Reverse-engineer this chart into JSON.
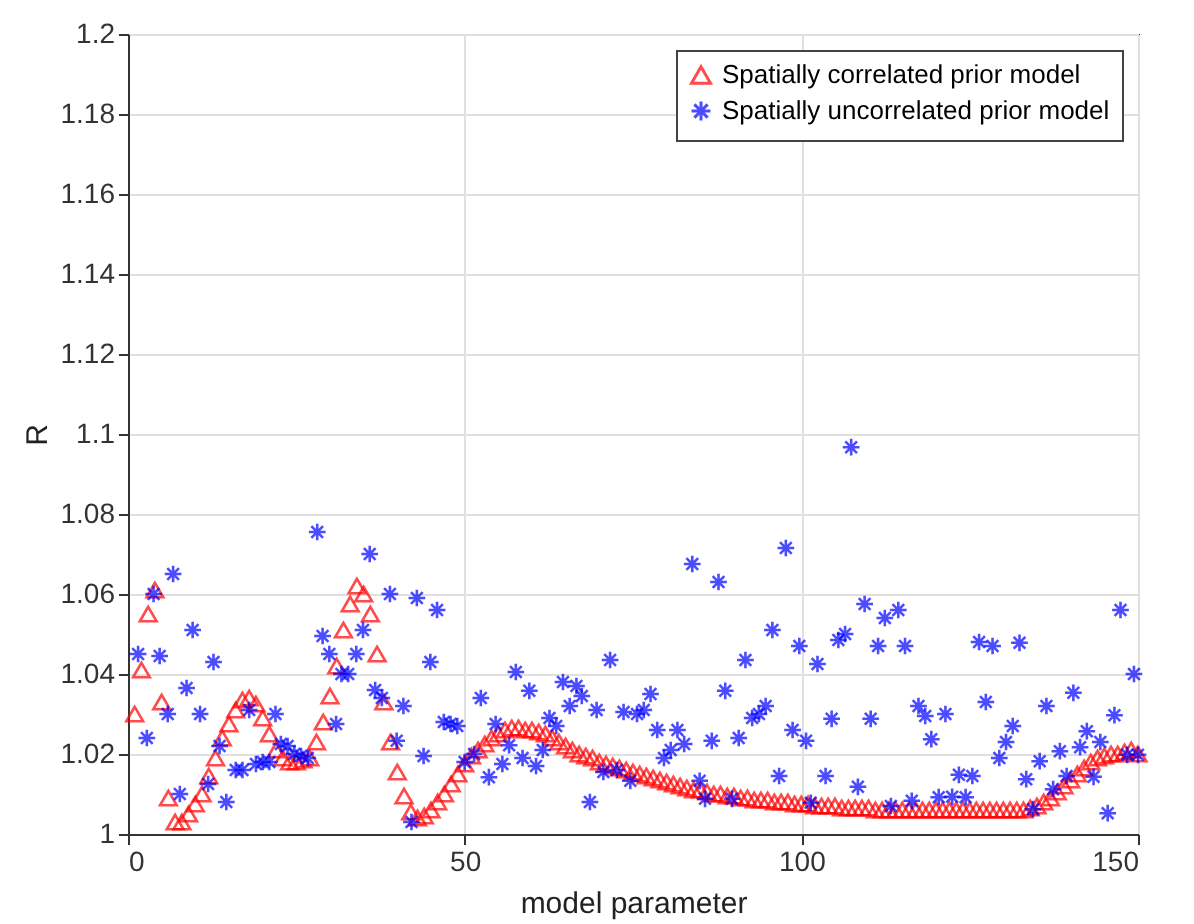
{
  "chart_data": {
    "type": "scatter",
    "xlabel": "model parameter",
    "ylabel": "R",
    "xlim": [
      0,
      150
    ],
    "xticks": [
      0,
      50,
      100,
      150
    ],
    "ylim": [
      1,
      1.2
    ],
    "yticks": [
      1,
      1.02,
      1.04,
      1.06,
      1.08,
      1.1,
      1.12,
      1.14,
      1.16,
      1.18,
      1.2
    ],
    "grid": true,
    "legend": "top right",
    "series": [
      {
        "name": "Spatially correlated prior model",
        "color": "#ff0000",
        "marker": "triangle",
        "x": [
          1,
          2,
          3,
          4,
          5,
          6,
          7,
          8,
          9,
          10,
          11,
          12,
          13,
          14,
          15,
          16,
          17,
          18,
          19,
          20,
          21,
          22,
          23,
          24,
          25,
          26,
          27,
          28,
          29,
          30,
          31,
          32,
          33,
          34,
          35,
          36,
          37,
          38,
          39,
          40,
          41,
          42,
          43,
          44,
          45,
          46,
          47,
          48,
          49,
          50,
          51,
          52,
          53,
          54,
          55,
          56,
          57,
          58,
          59,
          60,
          61,
          62,
          63,
          64,
          65,
          66,
          67,
          68,
          69,
          70,
          71,
          72,
          73,
          74,
          75,
          76,
          77,
          78,
          79,
          80,
          81,
          82,
          83,
          84,
          85,
          86,
          87,
          88,
          89,
          90,
          91,
          92,
          93,
          94,
          95,
          96,
          97,
          98,
          99,
          100,
          101,
          102,
          103,
          104,
          105,
          106,
          107,
          108,
          109,
          110,
          111,
          112,
          113,
          114,
          115,
          116,
          117,
          118,
          119,
          120,
          121,
          122,
          123,
          124,
          125,
          126,
          127,
          128,
          129,
          130,
          131,
          132,
          133,
          134,
          135,
          136,
          137,
          138,
          139,
          140,
          141,
          142,
          143,
          144,
          145,
          146,
          147,
          148,
          149,
          150
        ],
        "values": [
          1.03,
          1.041,
          1.055,
          1.061,
          1.033,
          1.009,
          1.003,
          1.003,
          1.005,
          1.0075,
          1.01,
          1.0145,
          1.019,
          1.024,
          1.0275,
          1.031,
          1.0335,
          1.034,
          1.0325,
          1.029,
          1.025,
          1.021,
          1.019,
          1.018,
          1.018,
          1.0185,
          1.019,
          1.023,
          1.028,
          1.0345,
          1.042,
          1.051,
          1.0575,
          1.062,
          1.06,
          1.055,
          1.045,
          1.033,
          1.023,
          1.0155,
          1.0095,
          1.0055,
          1.004,
          1.0045,
          1.006,
          1.008,
          1.01,
          1.0125,
          1.015,
          1.0175,
          1.0195,
          1.021,
          1.0225,
          1.024,
          1.025,
          1.026,
          1.0265,
          1.0265,
          1.026,
          1.026,
          1.0255,
          1.025,
          1.024,
          1.023,
          1.022,
          1.021,
          1.02,
          1.0195,
          1.019,
          1.018,
          1.0175,
          1.017,
          1.0165,
          1.016,
          1.0155,
          1.015,
          1.0145,
          1.014,
          1.0135,
          1.013,
          1.0125,
          1.012,
          1.0115,
          1.011,
          1.011,
          1.0105,
          1.01,
          1.01,
          1.0095,
          1.0095,
          1.009,
          1.009,
          1.0085,
          1.0085,
          1.0085,
          1.008,
          1.008,
          1.008,
          1.0075,
          1.0075,
          1.0075,
          1.007,
          1.007,
          1.007,
          1.007,
          1.0065,
          1.0065,
          1.0065,
          1.0065,
          1.0065,
          1.006,
          1.006,
          1.006,
          1.006,
          1.006,
          1.006,
          1.006,
          1.006,
          1.006,
          1.006,
          1.006,
          1.006,
          1.006,
          1.006,
          1.006,
          1.006,
          1.006,
          1.006,
          1.006,
          1.006,
          1.006,
          1.006,
          1.006,
          1.0065,
          1.007,
          1.008,
          1.009,
          1.0105,
          1.012,
          1.0135,
          1.015,
          1.0165,
          1.018,
          1.019,
          1.0195,
          1.02,
          1.02,
          1.0205,
          1.021,
          1.02
        ]
      },
      {
        "name": "Spatially uncorrelated prior model",
        "color": "#0000ff",
        "marker": "cross",
        "x": [
          1.5,
          2.8,
          3.8,
          4.7,
          5.9,
          6.7,
          7.7,
          8.7,
          9.6,
          10.7,
          11.9,
          12.7,
          13.6,
          14.6,
          16,
          17,
          18,
          19,
          20,
          21,
          21.9,
          22.7,
          23.7,
          24.7,
          25.7,
          26.7,
          28.1,
          28.9,
          29.9,
          30.9,
          31.7,
          32.7,
          33.9,
          34.9,
          35.9,
          36.7,
          37.7,
          38.9,
          39.9,
          40.9,
          42.1,
          42.9,
          43.9,
          44.9,
          45.9,
          46.9,
          47.9,
          48.9,
          50,
          51.4,
          52.4,
          53.6,
          54.6,
          55.6,
          56.6,
          57.6,
          58.6,
          59.6,
          60.6,
          61.6,
          62.6,
          63.6,
          64.6,
          65.6,
          66.6,
          67.4,
          68.6,
          69.6,
          70.6,
          71.6,
          72.6,
          73.6,
          74.6,
          75.6,
          76.6,
          77.6,
          78.6,
          79.6,
          80.6,
          81.6,
          82.6,
          83.8,
          84.9,
          85.7,
          86.7,
          87.7,
          88.7,
          89.7,
          90.7,
          91.7,
          92.7,
          93.7,
          94.7,
          95.7,
          96.7,
          97.7,
          98.7,
          99.7,
          100.7,
          101.4,
          102.4,
          103.6,
          104.5,
          105.5,
          106.5,
          107.4,
          108.4,
          109.4,
          110.3,
          111.4,
          112.4,
          113.3,
          114.4,
          115.4,
          116.4,
          117.4,
          118.4,
          119.3,
          120.4,
          121.4,
          122.4,
          123.4,
          124.4,
          125.4,
          126.4,
          127.4,
          128.4,
          129.4,
          130.4,
          131.4,
          132.4,
          133.4,
          134.4,
          135.4,
          136.4,
          137.4,
          138.4,
          139.4,
          140.4,
          141.4,
          142.4,
          143.4,
          144.4,
          145.5,
          146.5,
          147.4,
          148.4,
          149.4,
          150
        ],
        "values": [
          1.045,
          1.024,
          1.06,
          1.0445,
          1.03,
          1.065,
          1.01,
          1.0365,
          1.051,
          1.03,
          1.0125,
          1.043,
          1.022,
          1.008,
          1.016,
          1.016,
          1.031,
          1.0175,
          1.018,
          1.018,
          1.03,
          1.0225,
          1.022,
          1.02,
          1.0195,
          1.019,
          1.0755,
          1.0495,
          1.045,
          1.0275,
          1.04,
          1.04,
          1.045,
          1.051,
          1.07,
          1.036,
          1.034,
          1.06,
          1.0233,
          1.032,
          1.003,
          1.059,
          1.0195,
          1.043,
          1.056,
          1.028,
          1.0275,
          1.027,
          1.018,
          1.02,
          1.034,
          1.0142,
          1.0275,
          1.0175,
          1.0222,
          1.0405,
          1.019,
          1.0358,
          1.017,
          1.021,
          1.029,
          1.027,
          1.038,
          1.032,
          1.037,
          1.0345,
          1.008,
          1.031,
          1.0155,
          1.0435,
          1.016,
          1.0305,
          1.0133,
          1.03,
          1.031,
          1.035,
          1.026,
          1.019,
          1.021,
          1.026,
          1.0225,
          1.0675,
          1.0133,
          1.0088,
          1.0233,
          1.063,
          1.0358,
          1.0088,
          1.024,
          1.0435,
          1.029,
          1.03,
          1.032,
          1.051,
          1.0145,
          1.0715,
          1.026,
          1.047,
          1.0233,
          1.0078,
          1.0425,
          1.0145,
          1.0288,
          1.0485,
          1.05,
          1.0967,
          1.0118,
          1.0575,
          1.0288,
          1.047,
          1.054,
          1.007,
          1.056,
          1.047,
          1.0083,
          1.032,
          1.0295,
          1.0237,
          1.0092,
          1.03,
          1.0093,
          1.0148,
          1.0092,
          1.0145,
          1.048,
          1.033,
          1.047,
          1.019,
          1.023,
          1.027,
          1.0478,
          1.0137,
          1.0062,
          1.0182,
          1.032,
          1.0112,
          1.0207,
          1.0145,
          1.0353,
          1.0217,
          1.0257,
          1.0143,
          1.023,
          1.0052,
          1.0297,
          1.056,
          1.0198,
          1.04,
          1.0198
        ]
      }
    ]
  }
}
